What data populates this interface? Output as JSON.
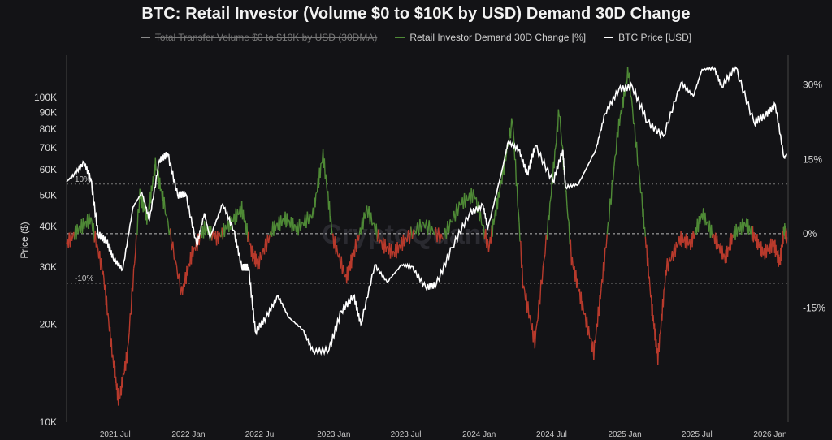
{
  "title": "BTC: Retail Investor (Volume $0 to $10K by USD) Demand 30D Change",
  "legend": [
    {
      "label": "Total Transfer Volume $0 to $10K by USD (30DMA)",
      "color": "#8a8a8a",
      "disabled": true
    },
    {
      "label": "Retail Investor Demand 30D Change [%]",
      "color": "#4f8a36",
      "disabled": false
    },
    {
      "label": "BTC Price [USD]",
      "color": "#ffffff",
      "disabled": false
    }
  ],
  "colors": {
    "positive": "#4f8a36",
    "negative": "#b83a2c",
    "price": "#ffffff",
    "background": "#131316"
  },
  "chart_data": {
    "type": "line",
    "title": "BTC: Retail Investor (Volume $0 to $10K by USD) Demand 30D Change",
    "ylabel_left": "Price ($)",
    "ylabel_right": "",
    "y_left_scale": "log",
    "y_left_ticks": [
      {
        "value": 10000,
        "label": "10K"
      },
      {
        "value": 20000,
        "label": "20K"
      },
      {
        "value": 30000,
        "label": "30K"
      },
      {
        "value": 40000,
        "label": "40K"
      },
      {
        "value": 50000,
        "label": "50K"
      },
      {
        "value": 60000,
        "label": "60K"
      },
      {
        "value": 70000,
        "label": "70K"
      },
      {
        "value": 80000,
        "label": "80K"
      },
      {
        "value": 90000,
        "label": "90K"
      },
      {
        "value": 100000,
        "label": "100K"
      }
    ],
    "y_right_ticks": [
      {
        "value": 30,
        "label": "30%"
      },
      {
        "value": 15,
        "label": "15%"
      },
      {
        "value": 0,
        "label": "0%"
      },
      {
        "value": -15,
        "label": "-15%"
      }
    ],
    "reference_lines": [
      {
        "value": 10,
        "label": "10%"
      },
      {
        "value": 0,
        "label": ""
      },
      {
        "value": -10,
        "label": "-10%"
      }
    ],
    "x_ticks": [
      {
        "date": "2021-07-01",
        "label": "2021 Jul"
      },
      {
        "date": "2022-01-01",
        "label": "2022 Jan"
      },
      {
        "date": "2022-07-01",
        "label": "2022 Jul"
      },
      {
        "date": "2023-01-01",
        "label": "2023 Jan"
      },
      {
        "date": "2023-07-01",
        "label": "2023 Jul"
      },
      {
        "date": "2024-01-01",
        "label": "2024 Jan"
      },
      {
        "date": "2024-07-01",
        "label": "2024 Jul"
      },
      {
        "date": "2025-01-01",
        "label": "2025 Jan"
      },
      {
        "date": "2025-07-01",
        "label": "2025 Jul"
      },
      {
        "date": "2026-01-01",
        "label": "2026 Jan"
      }
    ],
    "x_range": [
      "2021-03-01",
      "2026-02-15"
    ],
    "series": [
      {
        "name": "BTC Price [USD]",
        "axis": "left",
        "points": [
          [
            "2021-03-01",
            55000
          ],
          [
            "2021-03-20",
            58000
          ],
          [
            "2021-04-14",
            63000
          ],
          [
            "2021-05-01",
            56000
          ],
          [
            "2021-05-19",
            38000
          ],
          [
            "2021-06-10",
            36000
          ],
          [
            "2021-06-26",
            32000
          ],
          [
            "2021-07-20",
            29500
          ],
          [
            "2021-08-15",
            46000
          ],
          [
            "2021-09-06",
            51000
          ],
          [
            "2021-09-25",
            42000
          ],
          [
            "2021-10-20",
            64000
          ],
          [
            "2021-11-10",
            67000
          ],
          [
            "2021-12-05",
            50000
          ],
          [
            "2021-12-25",
            50500
          ],
          [
            "2022-01-22",
            35000
          ],
          [
            "2022-02-10",
            44000
          ],
          [
            "2022-02-24",
            37000
          ],
          [
            "2022-03-28",
            47000
          ],
          [
            "2022-04-25",
            39000
          ],
          [
            "2022-05-15",
            30000
          ],
          [
            "2022-06-01",
            30000
          ],
          [
            "2022-06-18",
            19000
          ],
          [
            "2022-07-15",
            21000
          ],
          [
            "2022-08-14",
            24500
          ],
          [
            "2022-09-10",
            21000
          ],
          [
            "2022-10-15",
            19300
          ],
          [
            "2022-11-10",
            16500
          ],
          [
            "2022-12-20",
            16700
          ],
          [
            "2023-01-20",
            22000
          ],
          [
            "2023-02-20",
            24500
          ],
          [
            "2023-03-10",
            20000
          ],
          [
            "2023-04-14",
            30500
          ],
          [
            "2023-05-15",
            27000
          ],
          [
            "2023-06-20",
            30500
          ],
          [
            "2023-07-15",
            30200
          ],
          [
            "2023-08-20",
            26000
          ],
          [
            "2023-09-15",
            26500
          ],
          [
            "2023-10-25",
            34500
          ],
          [
            "2023-12-08",
            44000
          ],
          [
            "2024-01-11",
            46500
          ],
          [
            "2024-01-23",
            39500
          ],
          [
            "2024-02-28",
            60000
          ],
          [
            "2024-03-14",
            73000
          ],
          [
            "2024-04-10",
            69000
          ],
          [
            "2024-05-01",
            58000
          ],
          [
            "2024-05-21",
            71000
          ],
          [
            "2024-07-05",
            55000
          ],
          [
            "2024-07-29",
            69000
          ],
          [
            "2024-08-05",
            53000
          ],
          [
            "2024-09-06",
            54000
          ],
          [
            "2024-10-20",
            69000
          ],
          [
            "2024-11-12",
            89000
          ],
          [
            "2024-12-17",
            106000
          ],
          [
            "2025-01-20",
            108000
          ],
          [
            "2025-02-27",
            84000
          ],
          [
            "2025-04-08",
            76000
          ],
          [
            "2025-05-22",
            111000
          ],
          [
            "2025-06-22",
            101000
          ],
          [
            "2025-07-14",
            122000
          ],
          [
            "2025-08-14",
            123000
          ],
          [
            "2025-09-01",
            108000
          ],
          [
            "2025-10-06",
            124000
          ],
          [
            "2025-11-21",
            84000
          ],
          [
            "2025-12-20",
            88000
          ],
          [
            "2026-01-14",
            95000
          ],
          [
            "2026-02-05",
            65000
          ],
          [
            "2026-02-12",
            67000
          ]
        ]
      },
      {
        "name": "Retail Investor Demand 30D Change [%]",
        "axis": "right",
        "points": [
          [
            "2021-03-01",
            -2
          ],
          [
            "2021-04-01",
            1
          ],
          [
            "2021-05-01",
            3
          ],
          [
            "2021-06-01",
            -8
          ],
          [
            "2021-06-25",
            -25
          ],
          [
            "2021-07-10",
            -34
          ],
          [
            "2021-08-01",
            -24
          ],
          [
            "2021-09-01",
            8
          ],
          [
            "2021-09-20",
            3
          ],
          [
            "2021-10-10",
            14
          ],
          [
            "2021-11-01",
            6
          ],
          [
            "2021-12-15",
            -12
          ],
          [
            "2022-01-10",
            -4
          ],
          [
            "2022-02-10",
            1
          ],
          [
            "2022-03-15",
            -1
          ],
          [
            "2022-04-15",
            2
          ],
          [
            "2022-05-15",
            5
          ],
          [
            "2022-06-10",
            -4
          ],
          [
            "2022-06-25",
            -6
          ],
          [
            "2022-08-01",
            1
          ],
          [
            "2022-09-01",
            3
          ],
          [
            "2022-10-01",
            1
          ],
          [
            "2022-11-10",
            4
          ],
          [
            "2022-12-05",
            16
          ],
          [
            "2022-12-30",
            -1
          ],
          [
            "2023-02-01",
            -9
          ],
          [
            "2023-02-20",
            -4
          ],
          [
            "2023-03-25",
            5
          ],
          [
            "2023-05-01",
            -2
          ],
          [
            "2023-06-01",
            -4
          ],
          [
            "2023-07-01",
            -1
          ],
          [
            "2023-08-15",
            2
          ],
          [
            "2023-10-01",
            -1
          ],
          [
            "2023-11-15",
            6
          ],
          [
            "2023-12-20",
            8
          ],
          [
            "2024-01-25",
            -3
          ],
          [
            "2024-02-20",
            8
          ],
          [
            "2024-03-25",
            23
          ],
          [
            "2024-04-20",
            -10
          ],
          [
            "2024-05-20",
            -22
          ],
          [
            "2024-06-25",
            4
          ],
          [
            "2024-07-20",
            25
          ],
          [
            "2024-08-20",
            -5
          ],
          [
            "2024-09-15",
            -14
          ],
          [
            "2024-10-15",
            -24
          ],
          [
            "2024-11-10",
            -6
          ],
          [
            "2024-12-15",
            21
          ],
          [
            "2025-01-10",
            33
          ],
          [
            "2025-02-15",
            5
          ],
          [
            "2025-03-10",
            -15
          ],
          [
            "2025-03-25",
            -25
          ],
          [
            "2025-04-15",
            -7
          ],
          [
            "2025-05-20",
            -1
          ],
          [
            "2025-06-15",
            -2
          ],
          [
            "2025-07-15",
            4
          ],
          [
            "2025-08-15",
            -1
          ],
          [
            "2025-09-10",
            -5
          ],
          [
            "2025-10-01",
            0
          ],
          [
            "2025-11-01",
            2
          ],
          [
            "2025-11-25",
            -1
          ],
          [
            "2025-12-15",
            -4
          ],
          [
            "2026-01-10",
            -2
          ],
          [
            "2026-01-25",
            -6
          ],
          [
            "2026-02-05",
            1
          ],
          [
            "2026-02-12",
            -1
          ]
        ]
      }
    ],
    "grid": false,
    "legend_position": "top-center"
  }
}
